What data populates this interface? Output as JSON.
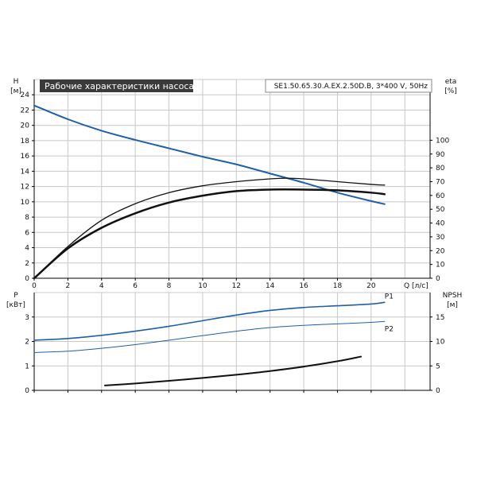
{
  "title": "Рабочие характеристики насоса",
  "model": "SE1.50.65.30.A.EX.2.50D.B, 3*400 V, 50Hz",
  "colors": {
    "blue": "#1f5fa8",
    "black": "#111111",
    "title_bg": "#3a3a3a",
    "grid": "#c8c8c8"
  },
  "chart_data": [
    {
      "type": "line",
      "x_label": "Q [л/с]",
      "x_ticks": [
        "0",
        "2",
        "4",
        "6",
        "8",
        "10",
        "12",
        "14",
        "16",
        "18",
        "20"
      ],
      "xlim": [
        0,
        23.5
      ],
      "y_left_label_1": "H",
      "y_left_label_2": "[м]",
      "y_left_ticks": [
        "0",
        "2",
        "4",
        "6",
        "8",
        "10",
        "12",
        "14",
        "16",
        "18",
        "20",
        "22",
        "24"
      ],
      "ylim": [
        0,
        26
      ],
      "y_right_label_1": "eta",
      "y_right_label_2": "[%]",
      "y_right_ticks": [
        "0",
        "10",
        "20",
        "30",
        "40",
        "50",
        "60",
        "70",
        "80",
        "90",
        "100"
      ],
      "y_right_lim": [
        0,
        144
      ],
      "grid": true,
      "series": [
        {
          "axis": "left",
          "color": "#1f5fa8",
          "width": 2,
          "x": [
            0,
            2,
            4,
            6,
            8,
            10,
            12,
            14,
            16,
            18,
            20,
            20.8
          ],
          "y": [
            22.6,
            20.8,
            19.3,
            18.1,
            17.0,
            15.9,
            14.9,
            13.7,
            12.5,
            11.2,
            10.1,
            9.7
          ]
        },
        {
          "axis": "right",
          "color": "#111111",
          "width": 1.3,
          "x": [
            0,
            2,
            4,
            6,
            8,
            10,
            12,
            14,
            15,
            16,
            18,
            20,
            20.8
          ],
          "y": [
            0,
            23,
            42,
            54,
            62,
            67,
            70,
            72,
            72.5,
            72,
            70,
            68,
            67.5
          ]
        },
        {
          "axis": "left",
          "color": "#111111",
          "width": 2.5,
          "x": [
            0,
            2,
            4,
            6,
            8,
            10,
            12,
            14,
            16,
            18,
            20,
            20.8
          ],
          "y": [
            0,
            3.9,
            6.6,
            8.5,
            9.9,
            10.8,
            11.4,
            11.6,
            11.6,
            11.5,
            11.2,
            11.0
          ]
        }
      ]
    },
    {
      "type": "line",
      "x_ticks": [
        "0",
        "2",
        "4",
        "6",
        "8",
        "10",
        "12",
        "14",
        "16",
        "18",
        "20"
      ],
      "xlim": [
        0,
        23.5
      ],
      "y_left_label_1": "P",
      "y_left_label_2": "[кВт]",
      "y_left_ticks": [
        "0",
        "1",
        "2",
        "3"
      ],
      "ylim": [
        0,
        4
      ],
      "y_right_label_1": "NPSH",
      "y_right_label_2": "[м]",
      "y_right_ticks": [
        "0",
        "5",
        "10",
        "15"
      ],
      "y_right_lim": [
        0,
        20
      ],
      "grid": true,
      "series": [
        {
          "name": "P1",
          "axis": "left",
          "color": "#1f5fa8",
          "width": 1.6,
          "x": [
            0,
            2,
            4,
            6,
            8,
            10,
            12,
            14,
            16,
            18,
            20,
            20.8
          ],
          "y": [
            2.05,
            2.12,
            2.25,
            2.42,
            2.62,
            2.85,
            3.08,
            3.27,
            3.39,
            3.46,
            3.53,
            3.6
          ]
        },
        {
          "name": "P2",
          "axis": "left",
          "color": "#1f5fa8",
          "width": 1,
          "x": [
            0,
            2,
            4,
            6,
            8,
            10,
            12,
            14,
            16,
            18,
            20,
            20.8
          ],
          "y": [
            1.55,
            1.6,
            1.72,
            1.87,
            2.05,
            2.24,
            2.42,
            2.57,
            2.66,
            2.72,
            2.78,
            2.82
          ]
        },
        {
          "axis": "right",
          "color": "#111111",
          "width": 2,
          "x": [
            4.2,
            6,
            8,
            10,
            12,
            14,
            16,
            18,
            19.4
          ],
          "y": [
            1.0,
            1.4,
            1.95,
            2.55,
            3.2,
            3.95,
            4.85,
            5.95,
            6.9
          ]
        }
      ]
    }
  ]
}
